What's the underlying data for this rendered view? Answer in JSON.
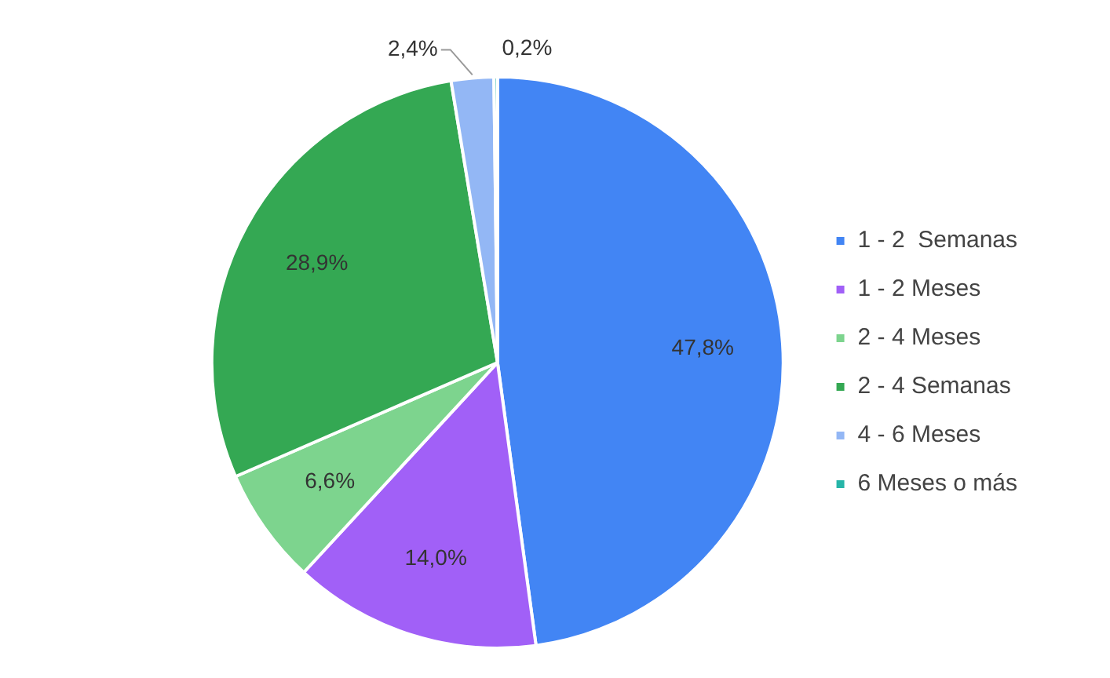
{
  "chart_data": {
    "type": "pie",
    "categories": [
      "1 - 2  Semanas",
      "1 - 2 Meses",
      "2 - 4 Meses",
      "2 - 4 Semanas",
      "4 - 6 Meses",
      "6 Meses o más"
    ],
    "values": [
      47.8,
      14.0,
      6.6,
      28.9,
      2.4,
      0.2
    ],
    "colors": [
      "#4285f4",
      "#a160f7",
      "#7dd48e",
      "#34a853",
      "#93b7f5",
      "#26b5a8"
    ],
    "value_labels": [
      "47,8%",
      "14,0%",
      "6,6%",
      "28,9%",
      "2,4%",
      "0,2%"
    ],
    "legend": "right"
  }
}
